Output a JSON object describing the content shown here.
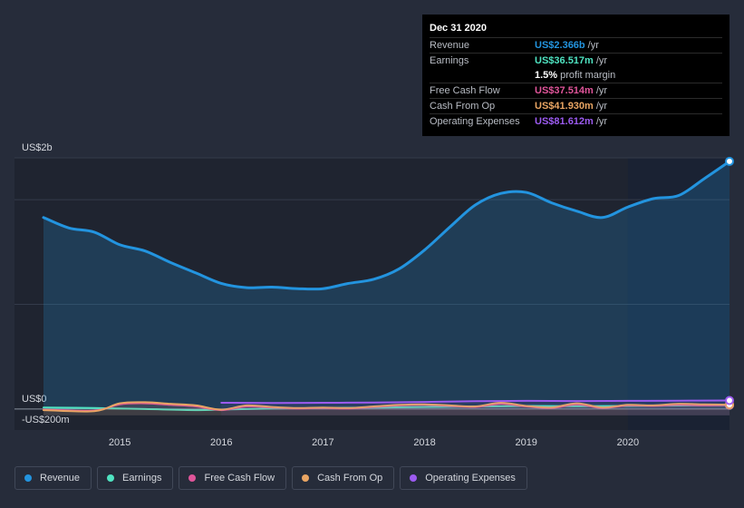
{
  "chart_data": {
    "type": "area",
    "y_top_label": "US$2b",
    "y_zero_label": "US$0",
    "y_bottom_label": "-US$200m",
    "ylim": [
      -200,
      2400
    ],
    "x_ticks": [
      "2015",
      "2016",
      "2017",
      "2018",
      "2019",
      "2020"
    ],
    "xlim": [
      2014.25,
      2021.0
    ],
    "series": [
      {
        "name": "Revenue",
        "color": "#2394df",
        "fill": true,
        "x": [
          2014.25,
          2014.5,
          2014.75,
          2015.0,
          2015.25,
          2015.5,
          2015.75,
          2016.0,
          2016.25,
          2016.5,
          2016.75,
          2017.0,
          2017.25,
          2017.5,
          2017.75,
          2018.0,
          2018.25,
          2018.5,
          2018.75,
          2019.0,
          2019.25,
          2019.5,
          2019.75,
          2020.0,
          2020.25,
          2020.5,
          2020.75,
          2021.0
        ],
        "values": [
          1830,
          1730,
          1690,
          1570,
          1510,
          1400,
          1300,
          1200,
          1160,
          1165,
          1150,
          1150,
          1200,
          1240,
          1340,
          1520,
          1740,
          1950,
          2060,
          2070,
          1970,
          1890,
          1830,
          1930,
          2010,
          2040,
          2200,
          2366
        ]
      },
      {
        "name": "Earnings",
        "color": "#4fe3c1",
        "fill": false,
        "x": [
          2014.25,
          2014.75,
          2015.25,
          2015.75,
          2016.0,
          2016.5,
          2017.0,
          2017.5,
          2018.0,
          2018.5,
          2019.0,
          2019.5,
          2020.0,
          2020.5,
          2021.0
        ],
        "values": [
          15,
          10,
          0,
          -10,
          -5,
          5,
          10,
          15,
          20,
          25,
          30,
          28,
          30,
          34,
          36.517
        ]
      },
      {
        "name": "Free Cash Flow",
        "color": "#e0559a",
        "fill": false,
        "x": [
          2014.25,
          2014.75,
          2015.0,
          2015.25,
          2015.5,
          2015.75,
          2016.0,
          2016.25,
          2016.5,
          2016.75,
          2017.0,
          2017.25,
          2017.5,
          2017.75,
          2018.0,
          2018.25,
          2018.5,
          2018.75,
          2019.0,
          2019.25,
          2019.5,
          2019.75,
          2020.0,
          2020.25,
          2020.5,
          2020.75,
          2021.0
        ],
        "values": [
          -5,
          -15,
          45,
          55,
          40,
          25,
          -10,
          25,
          15,
          5,
          10,
          5,
          20,
          35,
          40,
          30,
          20,
          50,
          25,
          10,
          45,
          10,
          35,
          30,
          40,
          35,
          37.514
        ]
      },
      {
        "name": "Cash From Op",
        "color": "#e9a563",
        "fill": false,
        "x": [
          2014.25,
          2014.75,
          2015.0,
          2015.25,
          2015.5,
          2015.75,
          2016.0,
          2016.25,
          2016.5,
          2016.75,
          2017.0,
          2017.25,
          2017.5,
          2017.75,
          2018.0,
          2018.25,
          2018.5,
          2018.75,
          2019.0,
          2019.25,
          2019.5,
          2019.75,
          2020.0,
          2020.25,
          2020.5,
          2020.75,
          2021.0
        ],
        "values": [
          -10,
          -20,
          55,
          65,
          50,
          35,
          -5,
          35,
          20,
          10,
          15,
          10,
          25,
          40,
          45,
          35,
          25,
          60,
          30,
          15,
          55,
          15,
          40,
          35,
          50,
          45,
          41.93
        ]
      },
      {
        "name": "Operating Expenses",
        "color": "#9c5bf0",
        "fill": false,
        "x": [
          2016.0,
          2016.5,
          2017.0,
          2017.5,
          2018.0,
          2018.5,
          2019.0,
          2019.5,
          2020.0,
          2020.5,
          2021.0
        ],
        "values": [
          60,
          58,
          60,
          62,
          68,
          75,
          78,
          76,
          78,
          80,
          81.612
        ]
      }
    ],
    "highlight_from": 2020.0
  },
  "tooltip": {
    "date": "Dec 31 2020",
    "rows": [
      {
        "label": "Revenue",
        "value": "US$2.366b",
        "unit": "/yr",
        "color": "#2394df"
      },
      {
        "label": "Earnings",
        "value": "US$36.517m",
        "unit": "/yr",
        "color": "#4fe3c1"
      },
      {
        "label": "",
        "value": "1.5%",
        "unit": "profit margin",
        "color": "#ffffff"
      },
      {
        "label": "Free Cash Flow",
        "value": "US$37.514m",
        "unit": "/yr",
        "color": "#e0559a"
      },
      {
        "label": "Cash From Op",
        "value": "US$41.930m",
        "unit": "/yr",
        "color": "#e9a563"
      },
      {
        "label": "Operating Expenses",
        "value": "US$81.612m",
        "unit": "/yr",
        "color": "#9c5bf0"
      }
    ]
  },
  "legend": [
    {
      "label": "Revenue",
      "color": "#2394df"
    },
    {
      "label": "Earnings",
      "color": "#4fe3c1"
    },
    {
      "label": "Free Cash Flow",
      "color": "#e0559a"
    },
    {
      "label": "Cash From Op",
      "color": "#e9a563"
    },
    {
      "label": "Operating Expenses",
      "color": "#9c5bf0"
    }
  ]
}
